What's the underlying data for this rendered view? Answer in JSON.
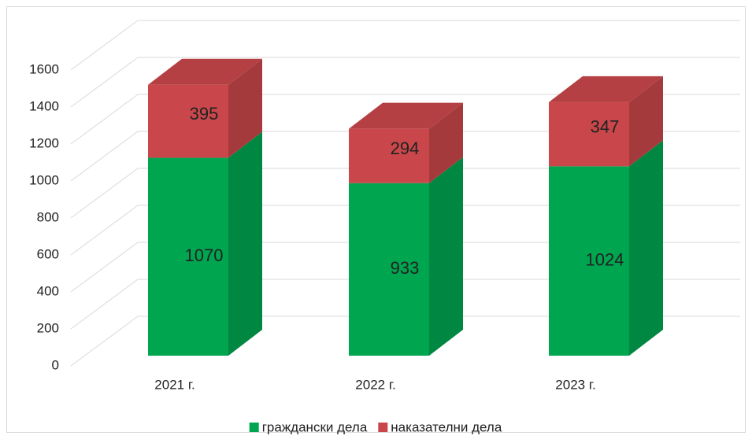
{
  "chart_data": {
    "type": "bar3d_stacked",
    "categories": [
      "2021 г.",
      "2022 г.",
      "2023 г."
    ],
    "series": [
      {
        "name": "граждански дела",
        "color": "#00a550",
        "values": [
          1070,
          933,
          1024
        ]
      },
      {
        "name": "наказателни дела",
        "color": "#c9474a",
        "values": [
          395,
          294,
          347
        ]
      }
    ],
    "ylim": [
      0,
      1600
    ],
    "yticks": [
      0,
      200,
      400,
      600,
      800,
      1000,
      1200,
      1400,
      1600
    ],
    "grid": true,
    "legend": "bottom"
  }
}
